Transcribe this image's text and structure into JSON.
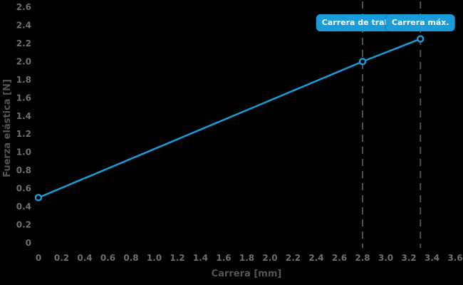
{
  "colors": {
    "background": "#000000",
    "accent_blue": "#1a9cd8",
    "badge_text": "#ffffff",
    "dashed_guide": "#4f4f4f",
    "tick_label": "#6e6e6e",
    "axis_title": "#555555",
    "marker_fill": "#000000"
  },
  "chart_data": {
    "type": "line",
    "title": "",
    "xlabel": "Carrera [mm]",
    "ylabel": "Fuerza elástica [N]",
    "xlim": [
      0,
      3.6
    ],
    "ylim": [
      0,
      2.6
    ],
    "grid": false,
    "legend": "none",
    "xticks": {
      "values": [
        0,
        0.2,
        0.4,
        0.6,
        0.8,
        1.0,
        1.2,
        1.4,
        1.6,
        1.8,
        2.0,
        2.2,
        2.4,
        2.6,
        2.8,
        3.0,
        3.2,
        3.4,
        3.6
      ],
      "labels": [
        "0",
        "0.2",
        "0.4",
        "0.6",
        "0.8",
        "1.0",
        "1.2",
        "1.4",
        "1.6",
        "1.8",
        "2.0",
        "2.2",
        "2.4",
        "2.6",
        "2.8",
        "3.0",
        "3.2",
        "3.4",
        "3.6"
      ]
    },
    "yticks": {
      "values": [
        0,
        0.2,
        0.4,
        0.6,
        0.8,
        1.0,
        1.2,
        1.4,
        1.6,
        1.8,
        2.0,
        2.2,
        2.4,
        2.6
      ],
      "labels": [
        "0",
        "0.2",
        "0.4",
        "0.6",
        "0.8",
        "1.0",
        "1.2",
        "1.4",
        "1.6",
        "1.8",
        "2.0",
        "2.2",
        "2.4",
        "2.6"
      ]
    },
    "series": [
      {
        "name": "Fuerza elástica",
        "color": "#1a9cd8",
        "marker": "open-circle",
        "x": [
          0,
          2.8,
          3.3
        ],
        "y": [
          0.5,
          2.0,
          2.25
        ]
      }
    ],
    "vlines": [
      {
        "x": 2.8,
        "label": "Carrera de trabajo",
        "style": "dashed"
      },
      {
        "x": 3.3,
        "label": "Carrera máx.",
        "style": "dashed"
      }
    ]
  }
}
